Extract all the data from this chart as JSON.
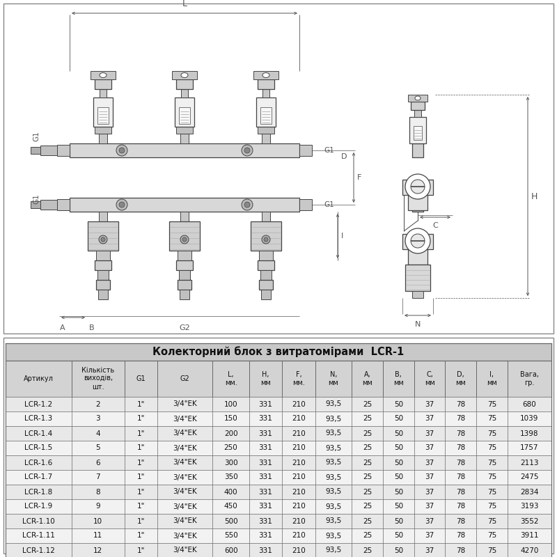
{
  "title": "Колекторний блок з витратомірами  LCR-1",
  "table_header": [
    "Артикул",
    "Кількість\nвиходів,\nшт.",
    "G1",
    "G2",
    "L,\nмм.",
    "H,\nмм",
    "F,\nмм.",
    "N,\nмм",
    "A,\nмм",
    "B,\nмм",
    "C,\nмм",
    "D,\nмм",
    "I,\nмм",
    "Вага,\nгр."
  ],
  "table_data": [
    [
      "LCR-1.2",
      "2",
      "1\"",
      "3/4\"EK",
      "100",
      "331",
      "210",
      "93,5",
      "25",
      "50",
      "37",
      "78",
      "75",
      "680"
    ],
    [
      "LCR-1.3",
      "3",
      "1\"",
      "3/4\"EK",
      "150",
      "331",
      "210",
      "93,5",
      "25",
      "50",
      "37",
      "78",
      "75",
      "1039"
    ],
    [
      "LCR-1.4",
      "4",
      "1\"",
      "3/4\"EK",
      "200",
      "331",
      "210",
      "93,5",
      "25",
      "50",
      "37",
      "78",
      "75",
      "1398"
    ],
    [
      "LCR-1.5",
      "5",
      "1\"",
      "3/4\"EK",
      "250",
      "331",
      "210",
      "93,5",
      "25",
      "50",
      "37",
      "78",
      "75",
      "1757"
    ],
    [
      "LCR-1.6",
      "6",
      "1\"",
      "3/4\"EK",
      "300",
      "331",
      "210",
      "93,5",
      "25",
      "50",
      "37",
      "78",
      "75",
      "2113"
    ],
    [
      "LCR-1.7",
      "7",
      "1\"",
      "3/4\"EK",
      "350",
      "331",
      "210",
      "93,5",
      "25",
      "50",
      "37",
      "78",
      "75",
      "2475"
    ],
    [
      "LCR-1.8",
      "8",
      "1\"",
      "3/4\"EK",
      "400",
      "331",
      "210",
      "93,5",
      "25",
      "50",
      "37",
      "78",
      "75",
      "2834"
    ],
    [
      "LCR-1.9",
      "9",
      "1\"",
      "3/4\"EK",
      "450",
      "331",
      "210",
      "93,5",
      "25",
      "50",
      "37",
      "78",
      "75",
      "3193"
    ],
    [
      "LCR-1.10",
      "10",
      "1\"",
      "3/4\"EK",
      "500",
      "331",
      "210",
      "93,5",
      "25",
      "50",
      "37",
      "78",
      "75",
      "3552"
    ],
    [
      "LCR-1.11",
      "11",
      "1\"",
      "3/4\"EK",
      "550",
      "331",
      "210",
      "93,5",
      "25",
      "50",
      "37",
      "78",
      "75",
      "3911"
    ],
    [
      "LCR-1.12",
      "12",
      "1\"",
      "3/4\"EK",
      "600",
      "331",
      "210",
      "93,5",
      "25",
      "50",
      "37",
      "78",
      "75",
      "4270"
    ]
  ],
  "bg_color": "#ffffff",
  "header_bg": "#d3d3d3",
  "title_bg": "#c8c8c8",
  "row_odd_bg": "#e8e8e8",
  "row_even_bg": "#f2f2f2",
  "border_color": "#666666",
  "text_color": "#111111",
  "line_color": "#444444",
  "dim_color": "#555555"
}
